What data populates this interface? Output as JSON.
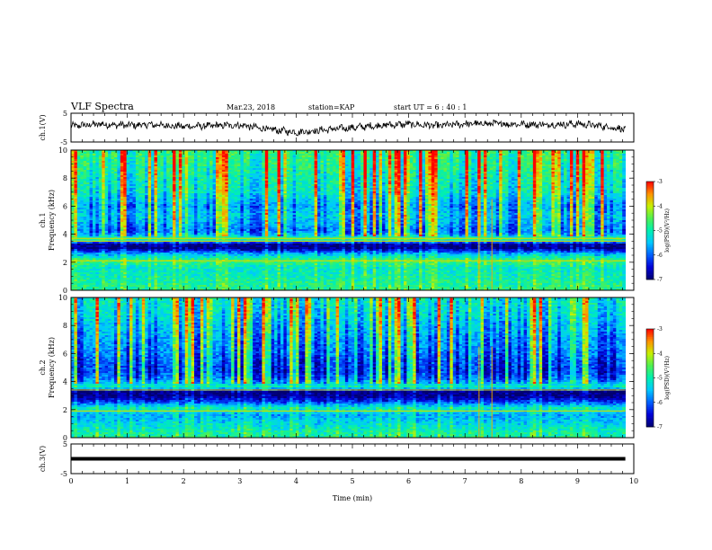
{
  "header": {
    "title": "VLF Spectra",
    "date": "Mar.23, 2018",
    "station": "station=KAP",
    "start_ut": "start UT =  6 : 40 : 1"
  },
  "colormap": {
    "stops": [
      "#000070",
      "#0000d8",
      "#0060ff",
      "#00c8ff",
      "#00f0b0",
      "#50f050",
      "#c8f000",
      "#ff9000",
      "#ff0000",
      "#ffffff"
    ],
    "axis_color": "#000000",
    "trace_color": "#000000"
  },
  "chart_data": [
    {
      "type": "line",
      "panel": "ch.1",
      "ylabel": "ch.1(V)",
      "ylim": [
        -5,
        5
      ],
      "y_ticks": [
        "5",
        "-5"
      ],
      "x_range_min": [
        0,
        9.85
      ],
      "description_values": {
        "x": [
          0,
          0.5,
          1.0,
          1.5,
          2.0,
          2.5,
          3.0,
          3.5,
          4.0,
          4.5,
          5.0,
          5.5,
          6.0,
          6.5,
          7.0,
          7.5,
          8.0,
          8.5,
          9.0,
          9.5,
          9.8
        ],
        "y": [
          0.5,
          1.2,
          0.8,
          1.0,
          0.4,
          0.6,
          0.9,
          -0.6,
          -1.6,
          -0.8,
          0.0,
          0.8,
          1.2,
          0.6,
          1.3,
          1.4,
          1.2,
          1.0,
          1.3,
          0.4,
          -0.5
        ]
      }
    },
    {
      "type": "heatmap",
      "panel": "ch.1",
      "ylabel": "ch.1\nFrequency (kHz)",
      "ylabel_lines": [
        "ch.1",
        "Frequency  (kHz)"
      ],
      "ylim": [
        0,
        10
      ],
      "y_ticks": [
        "0",
        "2",
        "4",
        "6",
        "8",
        "10"
      ],
      "x_range_min": [
        0,
        9.85
      ],
      "colorbar": {
        "label": "log(PSD)(V²/Hz)",
        "range": [
          -7,
          -3
        ],
        "ticks": [
          "-3",
          "-4",
          "-5",
          "-6",
          "-7"
        ]
      },
      "band_profile": {
        "freq_khz": [
          0.3,
          1.0,
          1.6,
          2.1,
          2.6,
          3.0,
          3.3,
          3.6,
          4.2,
          4.8,
          5.4,
          6.0,
          7.0,
          8.0,
          9.0,
          9.9
        ],
        "log_psd": [
          -4.8,
          -5.0,
          -5.1,
          -4.6,
          -5.6,
          -6.9,
          -6.8,
          -4.7,
          -5.8,
          -5.5,
          -5.3,
          -5.6,
          -5.0,
          -4.9,
          -4.7,
          -4.6
        ]
      },
      "strong_lines_khz": [
        2.1,
        3.5,
        3.7
      ],
      "impulse_times_min": [
        7.25,
        7.48
      ]
    },
    {
      "type": "heatmap",
      "panel": "ch.2",
      "ylabel_lines": [
        "ch.2",
        "Frequency  (kHz)"
      ],
      "ylim": [
        0,
        10
      ],
      "y_ticks": [
        "0",
        "2",
        "4",
        "6",
        "8",
        "10"
      ],
      "x_range_min": [
        0,
        9.85
      ],
      "colorbar": {
        "label": "log(PSD)(V²/Hz)",
        "range": [
          -7,
          -3
        ],
        "ticks": [
          "-3",
          "-4",
          "-5",
          "-6",
          "-7"
        ]
      },
      "band_profile": {
        "freq_khz": [
          0.3,
          1.0,
          1.6,
          2.1,
          2.6,
          3.0,
          3.3,
          3.6,
          4.2,
          4.8,
          5.4,
          6.0,
          7.0,
          8.0,
          9.0,
          9.9
        ],
        "log_psd": [
          -4.9,
          -5.3,
          -5.6,
          -5.0,
          -6.3,
          -6.9,
          -6.9,
          -5.0,
          -5.8,
          -6.1,
          -6.0,
          -5.8,
          -5.6,
          -5.4,
          -5.1,
          -5.0
        ]
      },
      "strong_lines_khz": [
        1.9,
        3.4
      ],
      "impulse_times_min": [
        7.25,
        7.48
      ]
    },
    {
      "type": "line",
      "panel": "ch.3",
      "ylabel": "ch.3(V)",
      "ylim": [
        -5,
        5
      ],
      "y_ticks": [
        "5",
        "-5"
      ],
      "x": [
        0,
        9.85
      ],
      "y": [
        0,
        0
      ]
    }
  ],
  "x_axis": {
    "label": "Time  (min)",
    "ticks": [
      "0",
      "1",
      "2",
      "3",
      "4",
      "5",
      "6",
      "7",
      "8",
      "9",
      "10"
    ],
    "range": [
      0,
      10
    ]
  }
}
